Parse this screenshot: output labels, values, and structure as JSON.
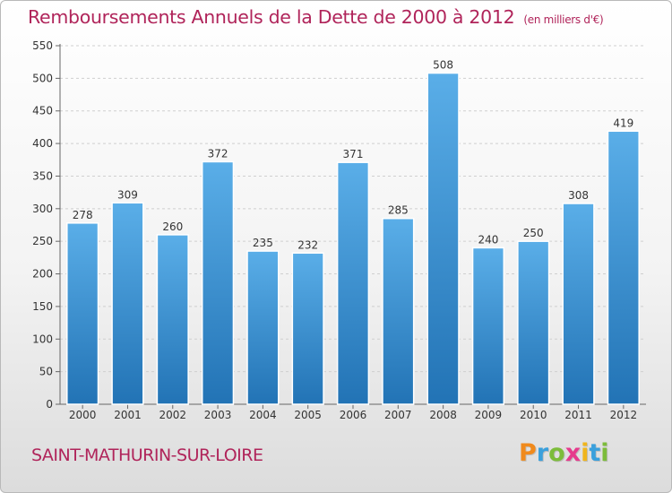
{
  "header": {
    "title": "Remboursements Annuels de la Dette de 2000 à 2012",
    "subtitle": "(en milliers d'€)"
  },
  "footer": {
    "location": "SAINT-MATHURIN-SUR-LOIRE",
    "brand": "Proxiti"
  },
  "colors": {
    "bar_top": "#5aaee8",
    "bar_bottom": "#2273b5",
    "title": "#b0245a",
    "brand_letters": [
      "#f08a1c",
      "#3aa0dc",
      "#7cbc3a",
      "#e63a8c",
      "#f0b51c",
      "#3aa0dc",
      "#7cbc3a"
    ]
  },
  "chart_data": {
    "type": "bar",
    "title": "Remboursements Annuels de la Dette de 2000 à 2012",
    "subtitle": "(en milliers d'€)",
    "categories": [
      "2000",
      "2001",
      "2002",
      "2003",
      "2004",
      "2005",
      "2006",
      "2007",
      "2008",
      "2009",
      "2010",
      "2011",
      "2012"
    ],
    "values": [
      278,
      309,
      260,
      372,
      235,
      232,
      371,
      285,
      508,
      240,
      250,
      308,
      419
    ],
    "ylim": [
      0,
      550
    ],
    "yticks": [
      0,
      50,
      100,
      150,
      200,
      250,
      300,
      350,
      400,
      450,
      500,
      550
    ],
    "grid": true,
    "xlabel": "",
    "ylabel": ""
  }
}
